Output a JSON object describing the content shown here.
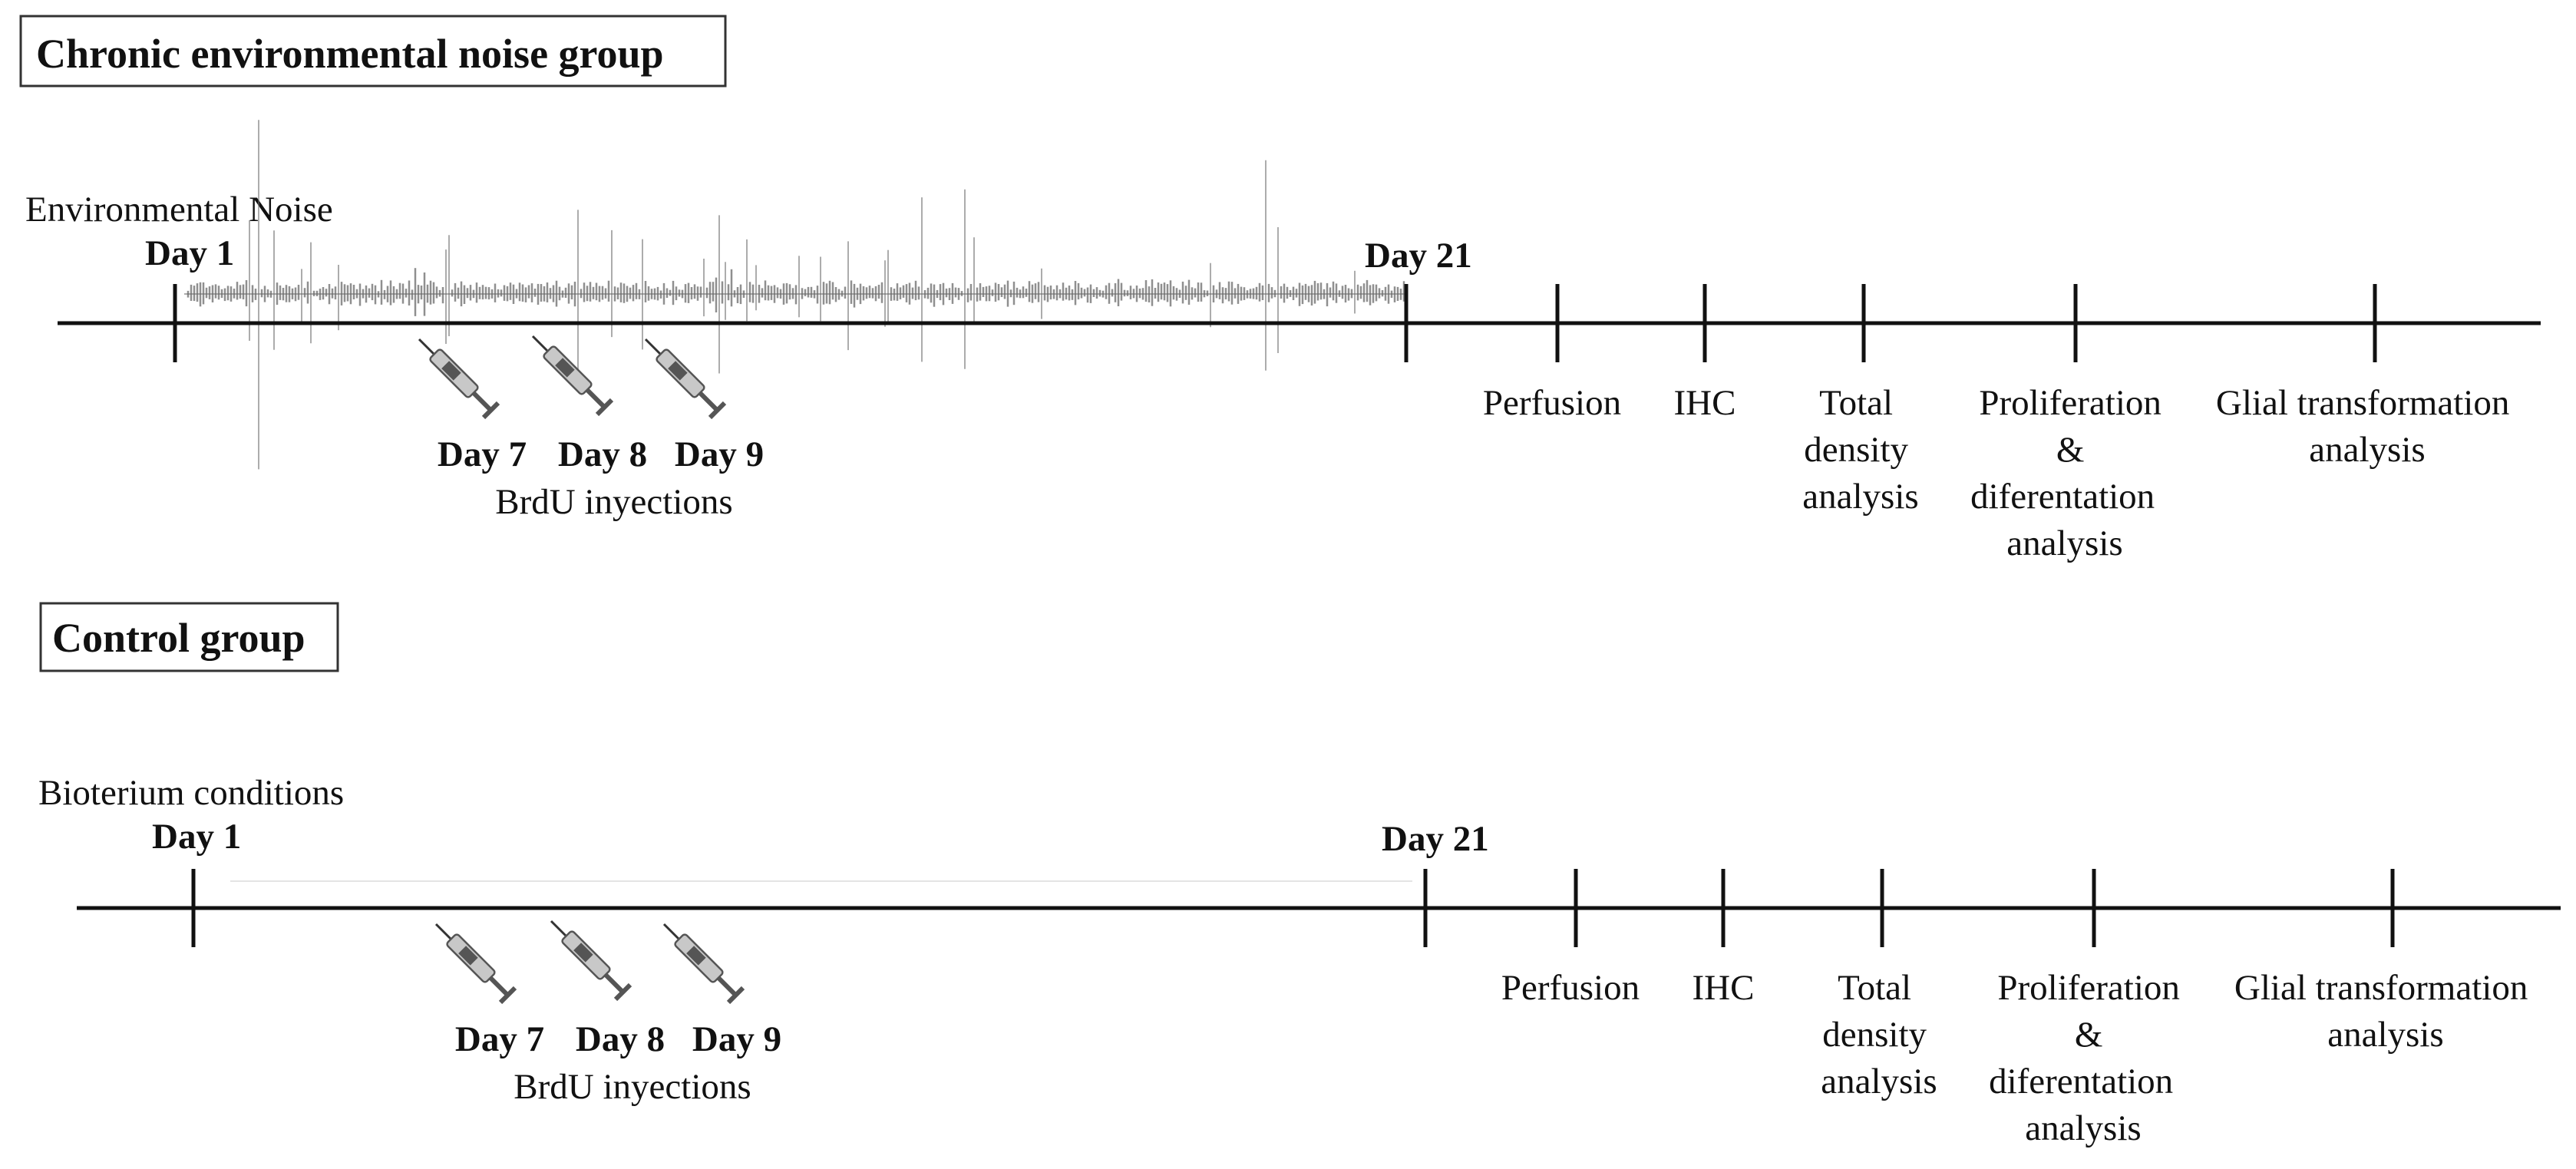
{
  "panels": {
    "noise": {
      "title": "Chronic environmental noise group",
      "condition": "Environmental  Noise",
      "day_start": "Day 1",
      "day_end": "Day 21",
      "injection_days": [
        "Day 7",
        "Day 8",
        "Day 9"
      ],
      "injection_label": "BrdU inyections",
      "steps": [
        {
          "lines": [
            "Perfusion"
          ]
        },
        {
          "lines": [
            "IHC"
          ]
        },
        {
          "lines": [
            "Total",
            "density",
            "analysis"
          ]
        },
        {
          "lines": [
            "Proliferation",
            "&",
            "diferentation",
            "analysis"
          ]
        },
        {
          "lines": [
            "Glial transformation",
            "analysis"
          ]
        }
      ]
    },
    "control": {
      "title": "Control group",
      "condition": "Bioterium conditions",
      "day_start": "Day 1",
      "day_end": "Day 21",
      "injection_days": [
        "Day 7",
        "Day 8",
        "Day 9"
      ],
      "injection_label": "BrdU inyections",
      "steps": [
        {
          "lines": [
            "Perfusion"
          ]
        },
        {
          "lines": [
            "IHC"
          ]
        },
        {
          "lines": [
            "Total",
            "density",
            "analysis"
          ]
        },
        {
          "lines": [
            "Proliferation",
            "&",
            "diferentation",
            "analysis"
          ]
        },
        {
          "lines": [
            "Glial transformation",
            "analysis"
          ]
        }
      ]
    }
  },
  "icons": {
    "syringe": "syringe-icon",
    "noise": "noise-waveform-icon"
  },
  "colors": {
    "ink": "#111111",
    "syringe_barrel": "#c8c8c8",
    "syringe_plunger": "#555555",
    "waveform": "#6a6a6a"
  }
}
